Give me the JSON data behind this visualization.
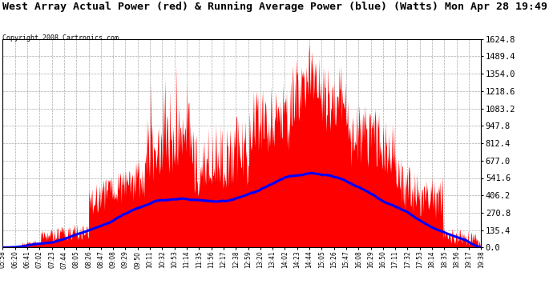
{
  "title": "West Array Actual Power (red) & Running Average Power (blue) (Watts) Mon Apr 28 19:49",
  "copyright": "Copyright 2008 Cartronics.com",
  "y_ticks": [
    0.0,
    135.4,
    270.8,
    406.2,
    541.6,
    677.0,
    812.4,
    947.8,
    1083.2,
    1218.6,
    1354.0,
    1489.4,
    1624.8
  ],
  "y_max": 1624.8,
  "x_labels": [
    "05:58",
    "06:20",
    "06:41",
    "07:02",
    "07:23",
    "07:44",
    "08:05",
    "08:26",
    "08:47",
    "09:08",
    "09:29",
    "09:50",
    "10:11",
    "10:32",
    "10:53",
    "11:14",
    "11:35",
    "11:56",
    "12:17",
    "12:38",
    "12:59",
    "13:20",
    "13:41",
    "14:02",
    "14:23",
    "14:44",
    "15:05",
    "15:26",
    "15:47",
    "16:08",
    "16:29",
    "16:50",
    "17:11",
    "17:32",
    "17:53",
    "18:14",
    "18:35",
    "18:56",
    "19:17",
    "19:38"
  ],
  "bg_color": "#ffffff",
  "plot_bg_color": "#ffffff",
  "grid_color": "#aaaaaa",
  "title_color": "#000000",
  "copyright_color": "#000000",
  "red_color": "#ff0000",
  "blue_color": "#0000ff",
  "tick_color": "#000000",
  "title_fontsize": 9.5,
  "copyright_fontsize": 6.0,
  "ytick_fontsize": 7.5,
  "xtick_fontsize": 5.5
}
